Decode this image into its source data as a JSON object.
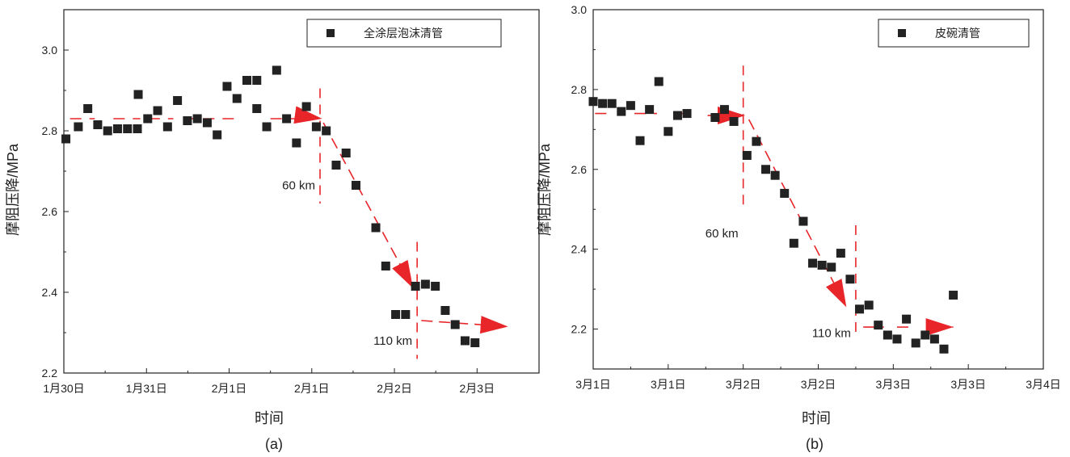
{
  "chart_data": [
    {
      "type": "scatter",
      "panel_label": "(a)",
      "xlabel": "时间",
      "ylabel": "摩阻压降/MPa",
      "ylim": [
        2.2,
        3.1
      ],
      "xlim": [
        0,
        11.5
      ],
      "y_ticks": [
        2.2,
        2.4,
        2.6,
        2.8,
        3.0
      ],
      "y_tick_labels": [
        "2.2",
        "2.4",
        "2.6",
        "2.8",
        "3.0"
      ],
      "x_ticks": [
        0,
        2,
        4,
        6,
        8,
        10
      ],
      "x_tick_labels": [
        "1月30日",
        "1月31日",
        "2月1日",
        "2月1日",
        "2月2日",
        "2月3日"
      ],
      "legend": {
        "label": "全涂层泡沫清管",
        "position": "top-right"
      },
      "series": [
        {
          "color": "#222222",
          "points": [
            [
              0.05,
              2.78
            ],
            [
              0.35,
              2.81
            ],
            [
              0.58,
              2.855
            ],
            [
              0.82,
              2.815
            ],
            [
              1.06,
              2.8
            ],
            [
              1.3,
              2.805
            ],
            [
              1.54,
              2.805
            ],
            [
              1.78,
              2.805
            ],
            [
              1.8,
              2.89
            ],
            [
              2.03,
              2.83
            ],
            [
              2.27,
              2.85
            ],
            [
              2.51,
              2.81
            ],
            [
              2.75,
              2.875
            ],
            [
              2.99,
              2.825
            ],
            [
              3.23,
              2.83
            ],
            [
              3.47,
              2.82
            ],
            [
              3.71,
              2.79
            ],
            [
              3.95,
              2.91
            ],
            [
              4.19,
              2.88
            ],
            [
              4.43,
              2.925
            ],
            [
              4.67,
              2.855
            ],
            [
              4.67,
              2.925
            ],
            [
              4.91,
              2.81
            ],
            [
              5.15,
              2.95
            ],
            [
              5.39,
              2.83
            ],
            [
              5.63,
              2.77
            ],
            [
              5.87,
              2.86
            ],
            [
              6.11,
              2.81
            ],
            [
              6.35,
              2.8
            ],
            [
              6.59,
              2.715
            ],
            [
              6.83,
              2.745
            ],
            [
              7.07,
              2.665
            ],
            [
              7.55,
              2.56
            ],
            [
              7.79,
              2.465
            ],
            [
              8.03,
              2.345
            ],
            [
              8.27,
              2.345
            ],
            [
              8.51,
              2.415
            ],
            [
              8.75,
              2.42
            ],
            [
              8.99,
              2.415
            ],
            [
              9.23,
              2.355
            ],
            [
              9.47,
              2.32
            ],
            [
              9.71,
              2.28
            ],
            [
              9.95,
              2.275
            ]
          ]
        }
      ],
      "trend_segments": [
        [
          [
            0.15,
            2.83
          ],
          [
            0.75,
            2.83
          ]
        ],
        [
          [
            1.2,
            2.83
          ],
          [
            1.85,
            2.83
          ]
        ],
        [
          [
            2.05,
            2.83
          ],
          [
            2.65,
            2.83
          ]
        ],
        [
          [
            2.9,
            2.83
          ],
          [
            4.2,
            2.83
          ]
        ],
        [
          [
            5.0,
            2.83
          ],
          [
            5.6,
            2.83
          ]
        ]
      ],
      "trend_arrows": [
        [
          [
            5.9,
            2.835
          ],
          [
            6.25,
            2.83
          ]
        ],
        [
          [
            6.28,
            2.82
          ],
          [
            8.45,
            2.41
          ]
        ],
        [
          [
            8.65,
            2.33
          ],
          [
            10.75,
            2.315
          ]
        ]
      ],
      "vlines": [
        {
          "x": 6.2,
          "y_range": [
            2.62,
            2.905
          ],
          "label": "60 km",
          "label_y": 2.665
        },
        {
          "x": 8.55,
          "y_range": [
            2.235,
            2.525
          ],
          "label": "110 km",
          "label_y": 2.28
        }
      ]
    },
    {
      "type": "scatter",
      "panel_label": "(b)",
      "xlabel": "时间",
      "ylabel": "摩阻压降/MPa",
      "ylim": [
        2.1,
        3.0
      ],
      "xlim": [
        0,
        12
      ],
      "y_ticks": [
        2.2,
        2.4,
        2.6,
        2.8,
        3.0
      ],
      "y_tick_labels": [
        "2.2",
        "2.4",
        "2.6",
        "2.8",
        "3.0"
      ],
      "x_ticks": [
        0,
        2,
        4,
        6,
        8,
        10,
        12
      ],
      "x_tick_labels": [
        "3月1日",
        "3月1日",
        "3月2日",
        "3月2日",
        "3月3日",
        "3月3日",
        "3月4日"
      ],
      "legend": {
        "label": "皮碗清管",
        "position": "top-right"
      },
      "series": [
        {
          "color": "#222222",
          "points": [
            [
              0.0,
              2.77
            ],
            [
              0.25,
              2.765
            ],
            [
              0.5,
              2.765
            ],
            [
              0.75,
              2.745
            ],
            [
              1.0,
              2.76
            ],
            [
              1.25,
              2.672
            ],
            [
              1.5,
              2.75
            ],
            [
              1.75,
              2.82
            ],
            [
              2.0,
              2.695
            ],
            [
              2.25,
              2.735
            ],
            [
              2.5,
              2.74
            ],
            [
              3.25,
              2.73
            ],
            [
              3.5,
              2.75
            ],
            [
              3.75,
              2.72
            ],
            [
              4.1,
              2.635
            ],
            [
              4.35,
              2.67
            ],
            [
              4.6,
              2.6
            ],
            [
              4.85,
              2.585
            ],
            [
              5.1,
              2.54
            ],
            [
              5.35,
              2.415
            ],
            [
              5.6,
              2.47
            ],
            [
              5.85,
              2.365
            ],
            [
              6.1,
              2.36
            ],
            [
              6.35,
              2.355
            ],
            [
              6.6,
              2.39
            ],
            [
              6.85,
              2.325
            ],
            [
              7.1,
              2.25
            ],
            [
              7.35,
              2.26
            ],
            [
              7.6,
              2.21
            ],
            [
              7.85,
              2.185
            ],
            [
              8.1,
              2.175
            ],
            [
              8.35,
              2.225
            ],
            [
              8.6,
              2.165
            ],
            [
              8.85,
              2.185
            ],
            [
              9.1,
              2.175
            ],
            [
              9.35,
              2.15
            ],
            [
              9.6,
              2.285
            ]
          ]
        }
      ],
      "trend_segments": [
        [
          [
            0.05,
            2.74
          ],
          [
            0.55,
            2.74
          ]
        ],
        [
          [
            1.1,
            2.74
          ],
          [
            1.7,
            2.74
          ]
        ],
        [
          [
            2.15,
            2.74
          ],
          [
            2.6,
            2.74
          ]
        ],
        [
          [
            3.05,
            2.735
          ],
          [
            3.45,
            2.735
          ]
        ],
        [
          [
            7.2,
            2.205
          ],
          [
            7.75,
            2.205
          ]
        ],
        [
          [
            8.1,
            2.205
          ],
          [
            8.6,
            2.205
          ]
        ]
      ],
      "trend_arrows": [
        [
          [
            3.7,
            2.735
          ],
          [
            4.05,
            2.735
          ]
        ],
        [
          [
            4.15,
            2.725
          ],
          [
            6.75,
            2.255
          ]
        ],
        [
          [
            9.1,
            2.205
          ],
          [
            9.6,
            2.205
          ]
        ]
      ],
      "vlines": [
        {
          "x": 4.0,
          "y_range": [
            2.5,
            2.86
          ],
          "label": "60 km",
          "label_y": 2.44
        },
        {
          "x": 7.0,
          "y_range": [
            2.18,
            2.46
          ],
          "label": "110 km",
          "label_y": 2.19
        }
      ]
    }
  ]
}
